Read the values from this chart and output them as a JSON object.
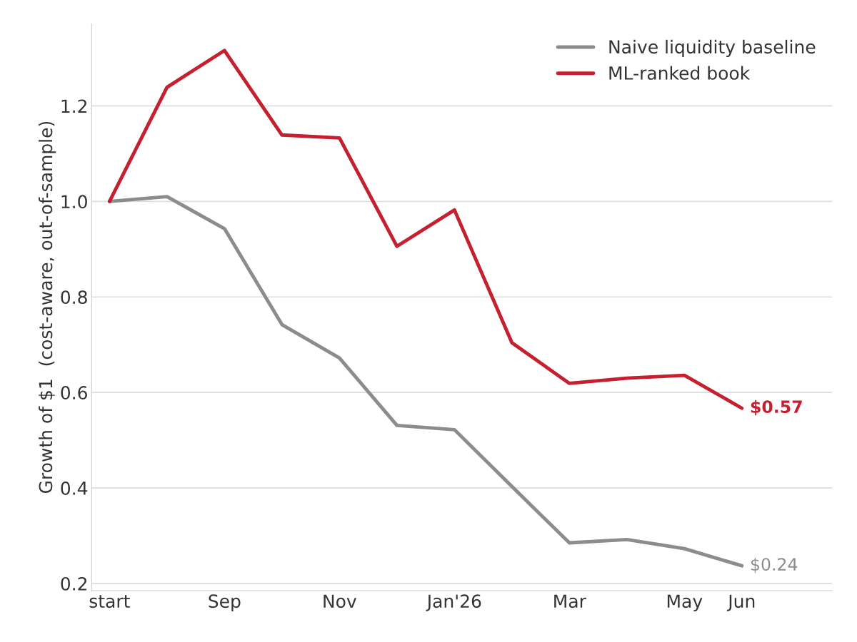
{
  "chart_data": {
    "type": "line",
    "ylabel": "Growth of $1  (cost-aware, out-of-sample)",
    "categories": [
      "start",
      null,
      "Sep",
      null,
      "Nov",
      null,
      "Jan'26",
      null,
      "Mar",
      null,
      "May",
      "Jun"
    ],
    "series": [
      {
        "name": "Naive liquidity baseline",
        "color": "#8c8c8c",
        "values": [
          1.0,
          1.01,
          0.943,
          0.742,
          0.672,
          0.531,
          0.522,
          0.403,
          0.285,
          0.292,
          0.273,
          0.237
        ]
      },
      {
        "name": "ML-ranked book",
        "color": "#c42030",
        "values": [
          1.0,
          1.239,
          1.316,
          1.139,
          1.133,
          0.906,
          0.982,
          0.704,
          0.619,
          0.63,
          0.636,
          0.567
        ]
      }
    ],
    "ylim": [
      0.185,
      1.372
    ],
    "yticks": [
      {
        "value": 0.2,
        "label": "0.2"
      },
      {
        "value": 0.4,
        "label": "0.4"
      },
      {
        "value": 0.6,
        "label": "0.6"
      },
      {
        "value": 0.8,
        "label": "0.8"
      },
      {
        "value": 1.0,
        "label": "1.0"
      },
      {
        "value": 1.2,
        "label": "1.2"
      }
    ],
    "grid": "y",
    "legend": "top right",
    "marker": "none",
    "line_style": "solid",
    "annotations": [
      {
        "text": "$0.57",
        "x": "Jun",
        "y": 0.567
      },
      {
        "text": "$0.24",
        "x": "Jun",
        "y": 0.237
      }
    ]
  }
}
